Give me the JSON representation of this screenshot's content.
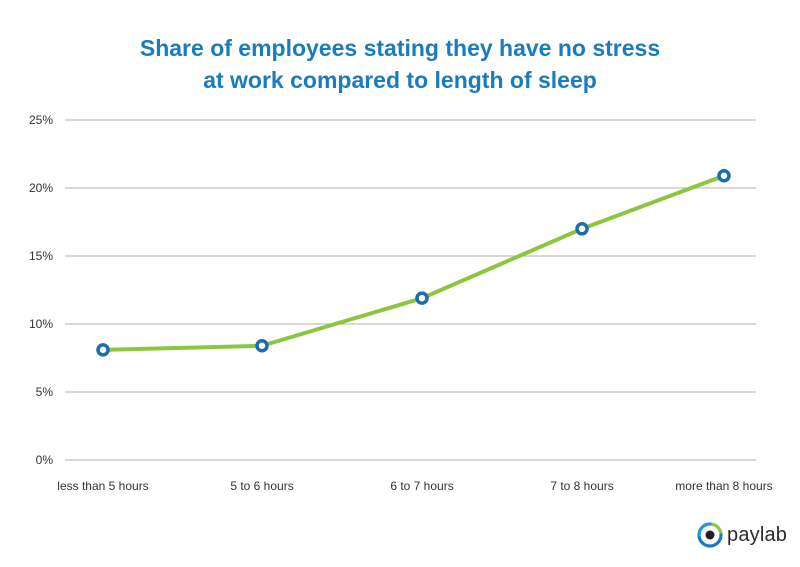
{
  "chart_data": {
    "type": "line",
    "title_line1": "Share of employees stating they have no stress",
    "title_line2": "at work compared to length of sleep",
    "categories": [
      "less than 5 hours",
      "5 to 6 hours",
      "6 to 7 hours",
      "7 to 8 hours",
      "more than 8 hours"
    ],
    "series": [
      {
        "values": [
          8.1,
          8.4,
          11.9,
          17.0,
          20.9
        ]
      }
    ],
    "ylim": [
      0,
      25
    ],
    "yticks": [
      "0%",
      "5%",
      "10%",
      "15%",
      "20%",
      "25%"
    ],
    "grid": true,
    "colors": {
      "line": "#8cc63f",
      "marker": "#1a6ead",
      "title": "#1a7bbf",
      "grid": "#b3b3b3"
    }
  },
  "branding": {
    "logo_text": "paylab",
    "icon": "paylab-eye-icon"
  }
}
